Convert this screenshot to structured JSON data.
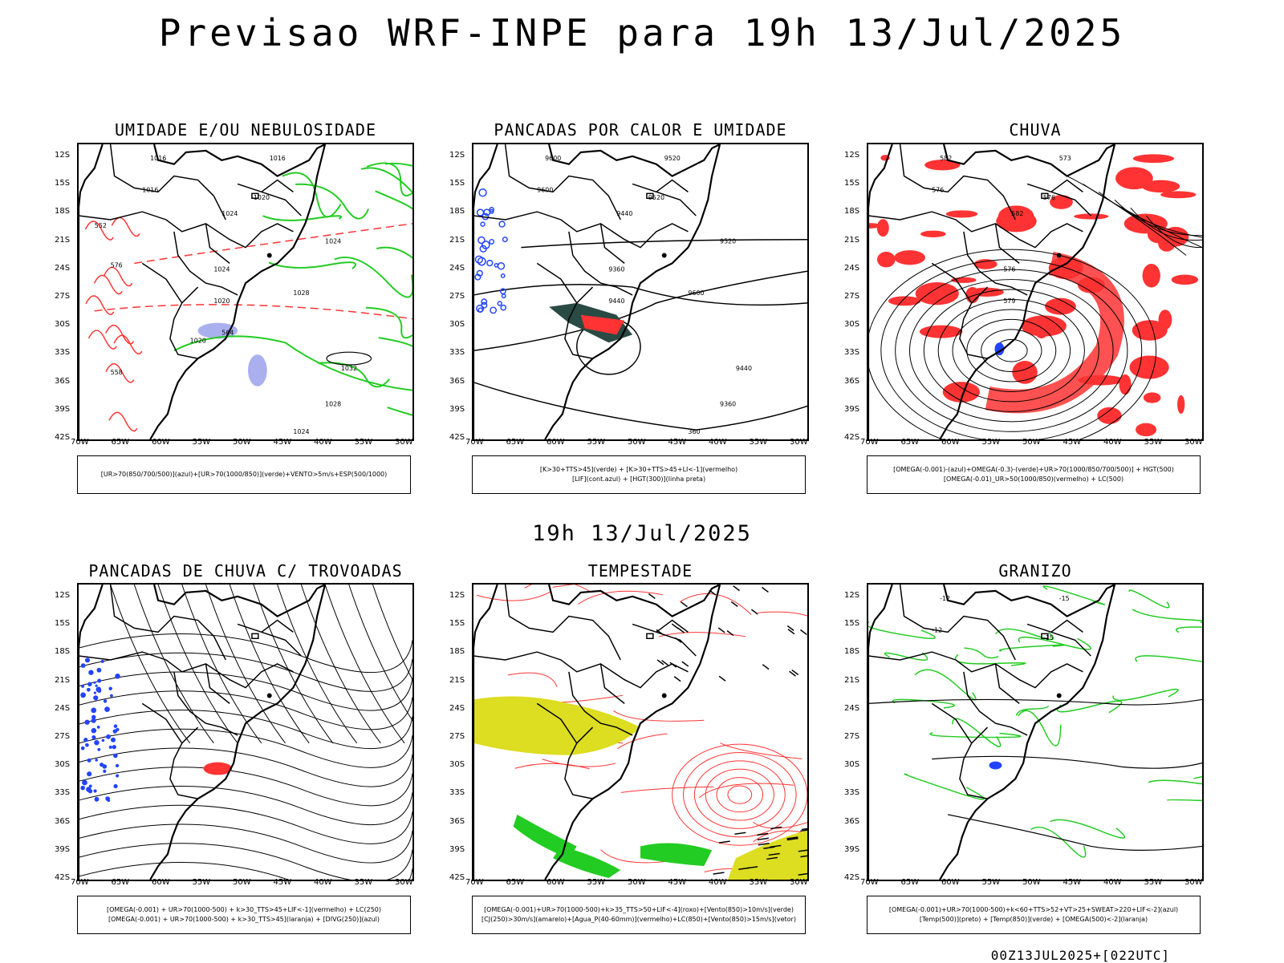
{
  "title": "Previsao WRF-INPE  para 19h 13/Jul/2025",
  "mid_title": "19h 13/Jul/2025",
  "footer": "00Z13JUL2025+[022UTC]",
  "lat_labels": [
    "12S",
    "15S",
    "18S",
    "21S",
    "24S",
    "27S",
    "30S",
    "33S",
    "36S",
    "39S",
    "42S"
  ],
  "lon_labels": [
    "70W",
    "65W",
    "60W",
    "55W",
    "50W",
    "45W",
    "40W",
    "35W",
    "30W"
  ],
  "panels": [
    {
      "title": "UMIDADE E/OU NEBULOSIDADE",
      "legend": [
        "[UR>70(850/700/500)](azul)+[UR>70(1000/850)](verde)+VENTO>5m/s+ESP(500/1000)"
      ]
    },
    {
      "title": "PANCADAS POR CALOR E UMIDADE",
      "legend": [
        "[K>30+TTS>45](verde) + [K>30+TTS>45+LI<-1](vermelho)",
        "[LIF](cont.azul) + [HGT(300)](linha preta)"
      ]
    },
    {
      "title": "CHUVA",
      "legend": [
        "[OMEGA(-0.001)-(azul)+OMEGA(-0.3)-(verde)+UR>70(1000/850/700/500)] + HGT(500)",
        "[OMEGA(-0.01)_UR>50(1000/850)(vermelho) + LC(500)"
      ]
    },
    {
      "title": "PANCADAS DE CHUVA C/ TROVOADAS",
      "legend": [
        "[OMEGA(-0.001) + UR>70(1000-500) + k>30_TTS>45+LIF<-1](vermelho) + LC(250)",
        "[OMEGA(-0.001) + UR>70(1000-500) + k>30_TTS>45](laranja) + [DIVG(250)](azul)"
      ]
    },
    {
      "title": "TEMPESTADE",
      "legend": [
        "[OMEGA(-0.001)+UR>70(1000-500)+k>35_TTS>50+LIF<-4](roxo)+[Vento(850)>10m/s](verde)",
        "[CJ(250)>30m/s](amarelo)+[Agua_P(40-60mm)](vermelho)+LC(850)+[Vento(850)>15m/s](vetor)"
      ]
    },
    {
      "title": "GRANIZO",
      "legend": [
        "[OMEGA(-0.001)+UR>70(1000-500)+k<60+TTS>52+VT>25+SWEAT>220+LIF<-2](azul)",
        "[Temp(500)](preto) + [Temp(850)](verde) + [OMEGA(500)<-2](laranja)"
      ]
    }
  ],
  "contour_labels": {
    "p1": [
      "1016",
      "1016",
      "1016",
      "1020",
      "1024",
      "1024",
      "1020",
      "1028",
      "1024",
      "1032",
      "1028",
      "1024",
      "1020",
      "576",
      "552",
      "558",
      "564"
    ],
    "p2": [
      "9600",
      "9600",
      "9520",
      "9520",
      "9440",
      "9360",
      "9440",
      "9600",
      "9520",
      "9440",
      "9360",
      "360"
    ],
    "p3": [
      "582",
      "576",
      "573",
      "576",
      "582",
      "576",
      "579"
    ],
    "p6": [
      "-12",
      "-12",
      "-15",
      "-15"
    ]
  },
  "colors": {
    "green": "#22cc22",
    "red": "#ff3333",
    "blue": "#2244ff",
    "yellow": "#dddd22",
    "lavender": "#aab0ee",
    "darkteal": "#2a4a44"
  }
}
